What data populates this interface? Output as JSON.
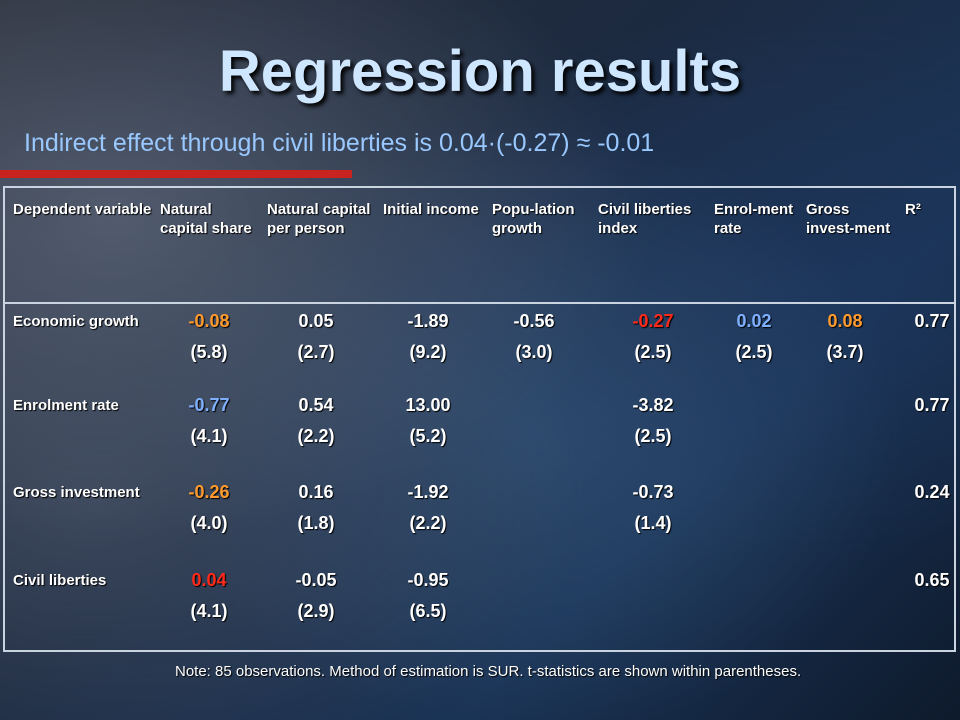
{
  "title": "Regression results",
  "subtitle": "Indirect effect through civil liberties is 0.04·(-0.27) ≈ -0.01",
  "headers": [
    "Dependent variable",
    "Natural capital share",
    "Natural capital per person",
    "Initial income",
    "Popu-lation growth",
    "Civil liberties index",
    "Enrol-ment rate",
    "Gross invest-ment",
    "R²"
  ],
  "rows": [
    {
      "label": "Economic growth",
      "cells": [
        {
          "coef": "-0.08",
          "t": "(5.8)",
          "color": "orange"
        },
        {
          "coef": "0.05",
          "t": "(2.7)",
          "color": "white"
        },
        {
          "coef": "-1.89",
          "t": "(9.2)",
          "color": "white"
        },
        {
          "coef": "-0.56",
          "t": "(3.0)",
          "color": "white"
        },
        {
          "coef": "-0.27",
          "t": "(2.5)",
          "color": "red"
        },
        {
          "coef": "0.02",
          "t": "(2.5)",
          "color": "blue"
        },
        {
          "coef": "0.08",
          "t": "(3.7)",
          "color": "orange"
        },
        {
          "coef": "0.77",
          "t": "",
          "color": "white"
        }
      ]
    },
    {
      "label": "Enrolment rate",
      "cells": [
        {
          "coef": "-0.77",
          "t": "(4.1)",
          "color": "blue"
        },
        {
          "coef": "0.54",
          "t": "(2.2)",
          "color": "white"
        },
        {
          "coef": "13.00",
          "t": "(5.2)",
          "color": "white"
        },
        {
          "coef": "",
          "t": "",
          "color": "white"
        },
        {
          "coef": "-3.82",
          "t": "(2.5)",
          "color": "white"
        },
        {
          "coef": "",
          "t": "",
          "color": "white"
        },
        {
          "coef": "",
          "t": "",
          "color": "white"
        },
        {
          "coef": "0.77",
          "t": "",
          "color": "white"
        }
      ]
    },
    {
      "label": "Gross investment",
      "cells": [
        {
          "coef": "-0.26",
          "t": "(4.0)",
          "color": "orange"
        },
        {
          "coef": "0.16",
          "t": "(1.8)",
          "color": "white"
        },
        {
          "coef": "-1.92",
          "t": "(2.2)",
          "color": "white"
        },
        {
          "coef": "",
          "t": "",
          "color": "white"
        },
        {
          "coef": "-0.73",
          "t": "(1.4)",
          "color": "white"
        },
        {
          "coef": "",
          "t": "",
          "color": "white"
        },
        {
          "coef": "",
          "t": "",
          "color": "white"
        },
        {
          "coef": "0.24",
          "t": "",
          "color": "white"
        }
      ]
    },
    {
      "label": "Civil liberties",
      "cells": [
        {
          "coef": "0.04",
          "t": "(4.1)",
          "color": "red"
        },
        {
          "coef": "-0.05",
          "t": "(2.9)",
          "color": "white"
        },
        {
          "coef": "-0.95",
          "t": "(6.5)",
          "color": "white"
        },
        {
          "coef": "",
          "t": "",
          "color": "white"
        },
        {
          "coef": "",
          "t": "",
          "color": "white"
        },
        {
          "coef": "",
          "t": "",
          "color": "white"
        },
        {
          "coef": "",
          "t": "",
          "color": "white"
        },
        {
          "coef": "0.65",
          "t": "",
          "color": "white"
        }
      ]
    }
  ],
  "note": "Note: 85 observations. Method of estimation is SUR. t-statistics are shown within parentheses."
}
